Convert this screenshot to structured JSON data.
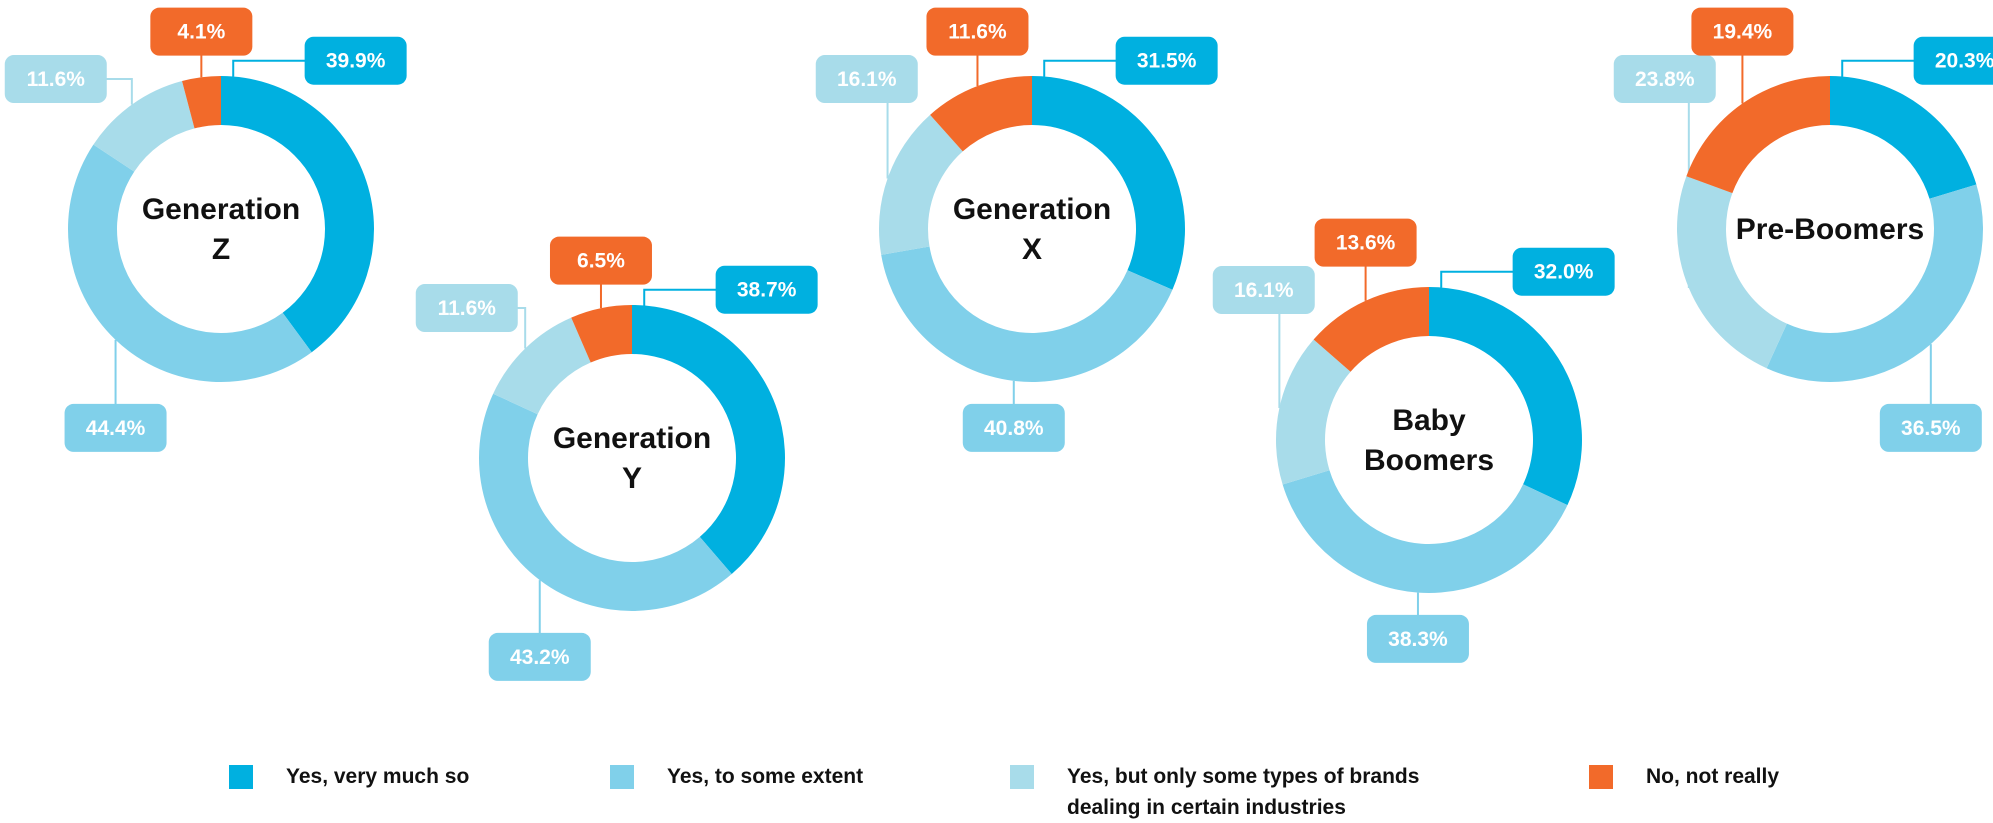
{
  "chart_data": [
    {
      "type": "pie",
      "title": [
        "Generation",
        "Z"
      ],
      "values": [
        39.9,
        44.4,
        11.6,
        4.1
      ],
      "value_labels": [
        "39.9%",
        "44.4%",
        "11.6%",
        "4.1%"
      ]
    },
    {
      "type": "pie",
      "title": [
        "Generation",
        "Y"
      ],
      "values": [
        38.7,
        43.2,
        11.6,
        6.5
      ],
      "value_labels": [
        "38.7%",
        "43.2%",
        "11.6%",
        "6.5%"
      ]
    },
    {
      "type": "pie",
      "title": [
        "Generation",
        "X"
      ],
      "values": [
        31.5,
        40.8,
        16.1,
        11.6
      ],
      "value_labels": [
        "31.5%",
        "40.8%",
        "16.1%",
        "11.6%"
      ]
    },
    {
      "type": "pie",
      "title": [
        "Baby",
        "Boomers"
      ],
      "values": [
        32.0,
        38.3,
        16.1,
        13.6
      ],
      "value_labels": [
        "32.0%",
        "38.3%",
        "16.1%",
        "13.6%"
      ]
    },
    {
      "type": "pie",
      "title": [
        "Pre-Boomers"
      ],
      "values": [
        20.3,
        36.5,
        23.8,
        19.4
      ],
      "value_labels": [
        "20.3%",
        "36.5%",
        "23.8%",
        "19.4%"
      ]
    }
  ],
  "legend": {
    "labels": [
      "Yes, very much so",
      "Yes, to some extent",
      "Yes, but only some types of brands dealing in certain industries",
      "No, not really"
    ],
    "colors": [
      "#00b0e0",
      "#80d0ea",
      "#a8dcea",
      "#f26a2a"
    ]
  }
}
